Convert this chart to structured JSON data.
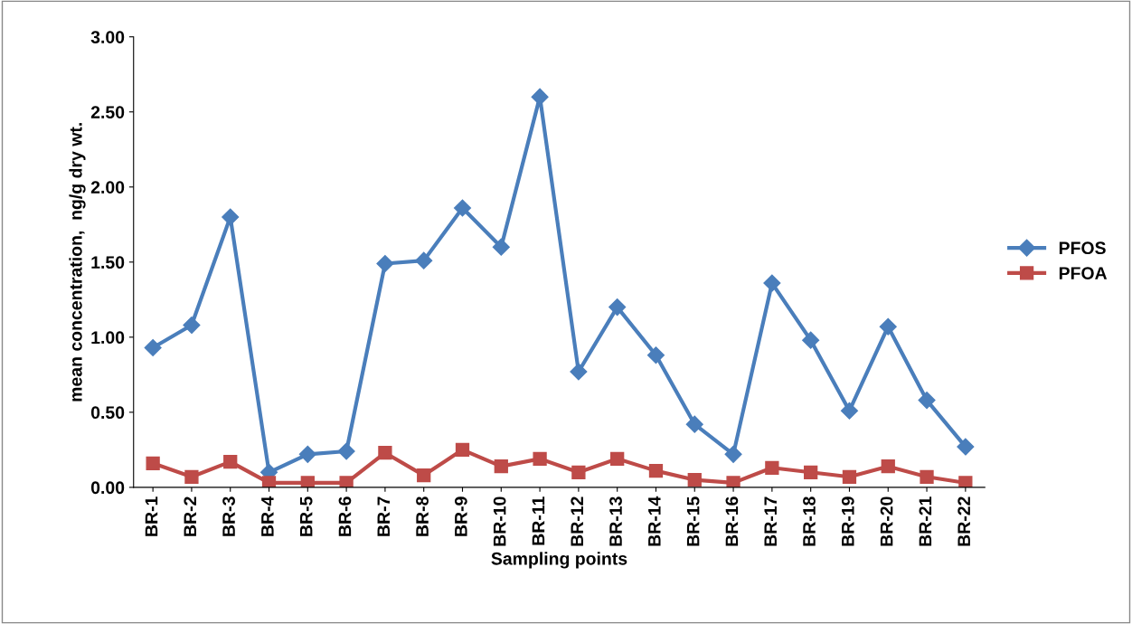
{
  "chart_data": {
    "type": "line",
    "xlabel": "Sampling points",
    "ylabel": "mean concentration,  ng/g dry wt.",
    "categories": [
      "BR-1",
      "BR-2",
      "BR-3",
      "BR-4",
      "BR-5",
      "BR-6",
      "BR-7",
      "BR-8",
      "BR-9",
      "BR-10",
      "BR-11",
      "BR-12",
      "BR-13",
      "BR-14",
      "BR-15",
      "BR-16",
      "BR-17",
      "BR-18",
      "BR-19",
      "BR-20",
      "BR-21",
      "BR-22"
    ],
    "series": [
      {
        "name": "PFOS",
        "color": "#4a7ebb",
        "marker": "diamond",
        "values": [
          0.93,
          1.08,
          1.8,
          0.1,
          0.22,
          0.24,
          1.49,
          1.51,
          1.86,
          1.6,
          2.6,
          0.77,
          1.2,
          0.88,
          0.42,
          0.22,
          1.36,
          0.98,
          0.51,
          1.07,
          0.58,
          0.27
        ]
      },
      {
        "name": "PFOA",
        "color": "#be4b48",
        "marker": "square",
        "values": [
          0.16,
          0.07,
          0.17,
          0.03,
          0.03,
          0.03,
          0.23,
          0.08,
          0.25,
          0.14,
          0.19,
          0.1,
          0.19,
          0.11,
          0.05,
          0.03,
          0.13,
          0.1,
          0.07,
          0.14,
          0.07,
          0.03
        ]
      }
    ],
    "ylim": [
      0,
      3
    ],
    "yticks": [
      {
        "value": 0,
        "label": "0.00"
      },
      {
        "value": 0.5,
        "label": "0.50"
      },
      {
        "value": 1,
        "label": "1.00"
      },
      {
        "value": 1.5,
        "label": "1.50"
      },
      {
        "value": 2,
        "label": "2.00"
      },
      {
        "value": 2.5,
        "label": "2.50"
      },
      {
        "value": 3,
        "label": "3.00"
      }
    ],
    "grid": false,
    "legend": "right",
    "line_style": "solid"
  }
}
